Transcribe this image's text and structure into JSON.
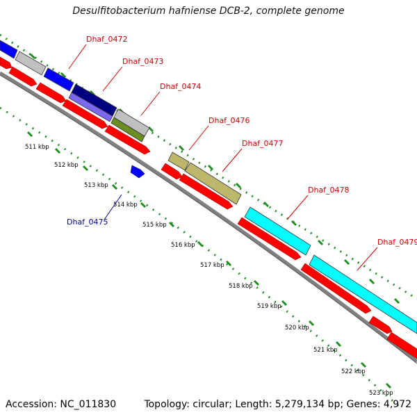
{
  "title": "Desulfitobacterium hafniense DCB-2, complete genome",
  "footer": {
    "accession": "Accession: NC_011830",
    "stats": "Topology: circular; Length: 5,279,134 bp; Genes: 4,972"
  },
  "colors": {
    "gene_label": "#cc0000",
    "gene_label_minus": "#000099",
    "cds": "#ff0000",
    "backbone": "#808080",
    "ticks": "#228b22",
    "blue": "#0000ff",
    "grey": "#c0c0c0",
    "navy": "#000080",
    "slate": "#7b68ee",
    "olive": "#6b8e23",
    "khaki": "#bdb76b",
    "cyan": "#00ffff"
  },
  "gene_labels": {
    "dhaf_0472": "Dhaf_0472",
    "dhaf_0473": "Dhaf_0473",
    "dhaf_0474": "Dhaf_0474",
    "dhaf_0475": "Dhaf_0475",
    "dhaf_0476": "Dhaf_0476",
    "dhaf_0477": "Dhaf_0477",
    "dhaf_0478": "Dhaf_0478",
    "dhaf_0479": "Dhaf_0479"
  },
  "kbp_labels": {
    "k511": "511 kbp",
    "k512": "512 kbp",
    "k513": "513 kbp",
    "k514": "514 kbp",
    "k515": "515 kbp",
    "k516": "516 kbp",
    "k517": "517 kbp",
    "k518": "518 kbp",
    "k519": "519 kbp",
    "k520": "520 kbp",
    "k521": "521 kbp",
    "k522": "522 kbp",
    "k523": "523 kbp"
  }
}
